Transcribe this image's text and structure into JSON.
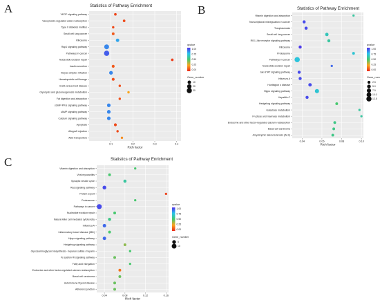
{
  "chart_data": [
    {
      "type": "scatter",
      "panel_letter": "A",
      "title": "Statistics of Pathway Enrichment",
      "xlabel": "Rich factor",
      "ylabel": "",
      "xlim": [
        0,
        0.42
      ],
      "xticks": [
        "0.1",
        "0.2",
        "0.3",
        "0.4"
      ],
      "xtick_values": [
        0.1,
        0.2,
        0.3,
        0.4
      ],
      "grid": true,
      "legend_position": "right",
      "color_legend": {
        "title": "qvalue",
        "ticks": [
          "1.00",
          "0.75",
          "0.50",
          "0.25",
          "0.00"
        ],
        "range": [
          0,
          1
        ]
      },
      "size_legend": {
        "title": "Gene_number",
        "ticks": [
          "10",
          "20",
          "30"
        ],
        "values": [
          10,
          20,
          30
        ]
      },
      "points": [
        {
          "pathway": "VEGF signaling pathway",
          "rich_factor": 0.12,
          "gene_number": 4,
          "qvalue": 0.06
        },
        {
          "pathway": "Vasopressin-regulated water reabsorption",
          "rich_factor": 0.16,
          "gene_number": 4,
          "qvalue": 0.07
        },
        {
          "pathway": "Type II diabetes mellitus",
          "rich_factor": 0.11,
          "gene_number": 3,
          "qvalue": 0.07
        },
        {
          "pathway": "Small cell lung cancer",
          "rich_factor": 0.11,
          "gene_number": 5,
          "qvalue": 0.1
        },
        {
          "pathway": "Ribosome",
          "rich_factor": 0.13,
          "gene_number": 10,
          "qvalue": 0.8
        },
        {
          "pathway": "Rap1 signaling pathway",
          "rich_factor": 0.08,
          "gene_number": 26,
          "qvalue": 0.85
        },
        {
          "pathway": "Pathways in cancer",
          "rich_factor": 0.08,
          "gene_number": 32,
          "qvalue": 0.92
        },
        {
          "pathway": "Nucleotide excision repair",
          "rich_factor": 0.38,
          "gene_number": 4,
          "qvalue": 0.04
        },
        {
          "pathway": "Insulin secretion",
          "rich_factor": 0.11,
          "gene_number": 6,
          "qvalue": 0.1
        },
        {
          "pathway": "Herpes simplex infection",
          "rich_factor": 0.1,
          "gene_number": 12,
          "qvalue": 0.85
        },
        {
          "pathway": "Hematopoietic cell lineage",
          "rich_factor": 0.11,
          "gene_number": 6,
          "qvalue": 0.08
        },
        {
          "pathway": "Graft-versus-host disease",
          "rich_factor": 0.14,
          "gene_number": 3,
          "qvalue": 0.08
        },
        {
          "pathway": "Glycolysis and gluconeogenesis metabolism",
          "rich_factor": 0.18,
          "gene_number": 3,
          "qvalue": 0.25
        },
        {
          "pathway": "Fat digestion and absorption",
          "rich_factor": 0.14,
          "gene_number": 3,
          "qvalue": 0.08
        },
        {
          "pathway": "cGMP-PKG signaling pathway",
          "rich_factor": 0.09,
          "gene_number": 12,
          "qvalue": 0.85
        },
        {
          "pathway": "cAMP signaling pathway",
          "rich_factor": 0.09,
          "gene_number": 12,
          "qvalue": 0.85
        },
        {
          "pathway": "Calcium signaling pathway",
          "rich_factor": 0.09,
          "gene_number": 12,
          "qvalue": 0.85
        },
        {
          "pathway": "Apoptosis",
          "rich_factor": 0.12,
          "gene_number": 6,
          "qvalue": 0.07
        },
        {
          "pathway": "Allograft rejection",
          "rich_factor": 0.13,
          "gene_number": 3,
          "qvalue": 0.07
        },
        {
          "pathway": "ABC transporters",
          "rich_factor": 0.15,
          "gene_number": 3,
          "qvalue": 0.2
        }
      ]
    },
    {
      "type": "scatter",
      "panel_letter": "B",
      "title": "Statistics of Pathway Enrichment",
      "xlabel": "Rich factor",
      "ylabel": "",
      "xlim": [
        0.03,
        0.102
      ],
      "xticks": [
        "0.04",
        "0.06",
        "0.08",
        "0.10"
      ],
      "xtick_values": [
        0.04,
        0.06,
        0.08,
        0.1
      ],
      "grid": true,
      "legend_position": "right",
      "color_legend": {
        "title": "qvalue",
        "ticks": [
          "1.00",
          "0.75",
          "0.50",
          "0.25",
          "0.00"
        ],
        "range": [
          0,
          1
        ]
      },
      "size_legend": {
        "title": "Gene_number",
        "ticks": [
          "2.5",
          "5.0",
          "7.5",
          "10.0",
          "12.5"
        ],
        "values": [
          2.5,
          5,
          7.5,
          10,
          12.5
        ]
      },
      "points": [
        {
          "pathway": "Vitamin digestion and absorption",
          "rich_factor": 0.092,
          "gene_number": 1,
          "qvalue": 0.6
        },
        {
          "pathway": "Transcriptional misregulation in cancer",
          "rich_factor": 0.042,
          "gene_number": 3,
          "qvalue": 0.95
        },
        {
          "pathway": "Toxoplasmosis",
          "rich_factor": 0.044,
          "gene_number": 3,
          "qvalue": 0.95
        },
        {
          "pathway": "Small cell lung cancer",
          "rich_factor": 0.065,
          "gene_number": 4,
          "qvalue": 0.65
        },
        {
          "pathway": "RIG-I-like receptor signaling pathway",
          "rich_factor": 0.067,
          "gene_number": 3,
          "qvalue": 0.6
        },
        {
          "pathway": "Ribosome",
          "rich_factor": 0.038,
          "gene_number": 3,
          "qvalue": 0.98
        },
        {
          "pathway": "Proteasome",
          "rich_factor": 0.092,
          "gene_number": 2,
          "qvalue": 0.7
        },
        {
          "pathway": "Pathways in cancer",
          "rich_factor": 0.035,
          "gene_number": 13,
          "qvalue": 0.72
        },
        {
          "pathway": "Nucleotide excision repair",
          "rich_factor": 0.07,
          "gene_number": 1,
          "qvalue": 0.9
        },
        {
          "pathway": "Jak-STAT signaling pathway",
          "rich_factor": 0.037,
          "gene_number": 3,
          "qvalue": 0.95
        },
        {
          "pathway": "Influenza A",
          "rich_factor": 0.038,
          "gene_number": 3,
          "qvalue": 0.95
        },
        {
          "pathway": "Huntington s disease",
          "rich_factor": 0.048,
          "gene_number": 4,
          "qvalue": 0.95
        },
        {
          "pathway": "Hippo signaling pathway",
          "rich_factor": 0.055,
          "gene_number": 7,
          "qvalue": 0.7
        },
        {
          "pathway": "Hepatitis C",
          "rich_factor": 0.045,
          "gene_number": 3,
          "qvalue": 0.95
        },
        {
          "pathway": "Hedgehog signaling pathway",
          "rich_factor": 0.075,
          "gene_number": 2,
          "qvalue": 0.5
        },
        {
          "pathway": "Galactose metabolism",
          "rich_factor": 0.098,
          "gene_number": 1,
          "qvalue": 0.6
        },
        {
          "pathway": "Fructose and mannose metabolism",
          "rich_factor": 0.1,
          "gene_number": 1,
          "qvalue": 0.6
        },
        {
          "pathway": "Endocrine and other factor-regulated calcium reabsorption",
          "rich_factor": 0.073,
          "gene_number": 2,
          "qvalue": 0.55
        },
        {
          "pathway": "Basal cell carcinoma",
          "rich_factor": 0.072,
          "gene_number": 2,
          "qvalue": 0.55
        },
        {
          "pathway": "Amyotrophic lateral sclerosis (ALS)",
          "rich_factor": 0.071,
          "gene_number": 2,
          "qvalue": 0.55
        }
      ]
    },
    {
      "type": "scatter",
      "panel_letter": "C",
      "title": "Statistics of Pathway Enrichment",
      "xlabel": "Rich factor",
      "ylabel": "",
      "xlim": [
        0.025,
        0.165
      ],
      "xticks": [
        "0.04",
        "0.08",
        "0.12",
        "0.16"
      ],
      "xtick_values": [
        0.04,
        0.08,
        0.12,
        0.16
      ],
      "grid": true,
      "legend_position": "right",
      "color_legend": {
        "title": "qvalue",
        "ticks": [
          "1.00",
          "0.75",
          "0.50",
          "0.25",
          "0.00"
        ],
        "range": [
          0,
          1
        ]
      },
      "size_legend": {
        "title": "Gene_number",
        "ticks": [
          "5",
          "10"
        ],
        "values": [
          5,
          10
        ]
      },
      "points": [
        {
          "pathway": "Vitamin digestion and absorption",
          "rich_factor": 0.1,
          "gene_number": 1,
          "qvalue": 0.5
        },
        {
          "pathway": "Viral myocarditis",
          "rich_factor": 0.05,
          "gene_number": 2,
          "qvalue": 0.5
        },
        {
          "pathway": "Synaptic vesicle cycle",
          "rich_factor": 0.08,
          "gene_number": 3,
          "qvalue": 0.6
        },
        {
          "pathway": "Ras signaling pathway",
          "rich_factor": 0.04,
          "gene_number": 5,
          "qvalue": 0.95
        },
        {
          "pathway": "Protein export",
          "rich_factor": 0.16,
          "gene_number": 1,
          "qvalue": 0.05
        },
        {
          "pathway": "Proteasome",
          "rich_factor": 0.1,
          "gene_number": 1,
          "qvalue": 0.5
        },
        {
          "pathway": "Pathways in cancer",
          "rich_factor": 0.03,
          "gene_number": 11,
          "qvalue": 0.95
        },
        {
          "pathway": "Nucleotide excision repair",
          "rich_factor": 0.06,
          "gene_number": 2,
          "qvalue": 0.5
        },
        {
          "pathway": "Natural killer cell mediated cytotoxicity",
          "rich_factor": 0.05,
          "gene_number": 3,
          "qvalue": 0.55
        },
        {
          "pathway": "Influenza A",
          "rich_factor": 0.04,
          "gene_number": 4,
          "qvalue": 0.9
        },
        {
          "pathway": "Inflammatory bowel disease (IBD)",
          "rich_factor": 0.05,
          "gene_number": 2,
          "qvalue": 0.5
        },
        {
          "pathway": "Hippo signaling pathway",
          "rich_factor": 0.04,
          "gene_number": 4,
          "qvalue": 0.9
        },
        {
          "pathway": "Hedgehog signaling pathway",
          "rich_factor": 0.08,
          "gene_number": 2,
          "qvalue": 0.4
        },
        {
          "pathway": "Glycosaminoglycan biosynthesis - heparan sulfate / heparin",
          "rich_factor": 0.09,
          "gene_number": 1,
          "qvalue": 0.5
        },
        {
          "pathway": "Fc epsilon RI signaling pathway",
          "rich_factor": 0.06,
          "gene_number": 2,
          "qvalue": 0.45
        },
        {
          "pathway": "Fatty acid elongation",
          "rich_factor": 0.09,
          "gene_number": 1,
          "qvalue": 0.5
        },
        {
          "pathway": "Endocrine and other factor-regulated calcium reabsorption",
          "rich_factor": 0.07,
          "gene_number": 2,
          "qvalue": 0.15
        },
        {
          "pathway": "Basal cell carcinoma",
          "rich_factor": 0.07,
          "gene_number": 2,
          "qvalue": 0.45
        },
        {
          "pathway": "Autoimmune thyroid disease",
          "rich_factor": 0.06,
          "gene_number": 2,
          "qvalue": 0.45
        },
        {
          "pathway": "Adherens junction",
          "rich_factor": 0.06,
          "gene_number": 2,
          "qvalue": 0.45
        }
      ]
    }
  ]
}
